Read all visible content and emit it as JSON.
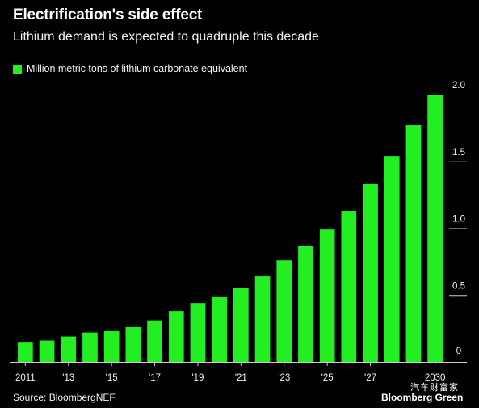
{
  "header": {
    "title": "Electrification's side effect",
    "subtitle": "Lithium demand is expected to quadruple this decade"
  },
  "footer": {
    "source": "Source: BloombergNEF",
    "brand": "Bloomberg Green",
    "watermark": "汽车财富家"
  },
  "colors": {
    "bar": "#22ee22",
    "background": "#000000",
    "axis": "#cccccc"
  },
  "chart_data": {
    "type": "bar",
    "title": "Electrification's side effect",
    "subtitle": "Lithium demand is expected to quadruple this decade",
    "legend": {
      "position": "top-left",
      "entries": [
        "Million metric tons of lithium carbonate equivalent"
      ]
    },
    "categories": [
      "2011",
      "2012",
      "2013",
      "2014",
      "2015",
      "2016",
      "2017",
      "2018",
      "2019",
      "2020",
      "2021",
      "2022",
      "2023",
      "2024",
      "2025",
      "2026",
      "2027",
      "2028",
      "2029",
      "2030"
    ],
    "x_tick_labels": [
      {
        "index": 0,
        "label": "2011"
      },
      {
        "index": 2,
        "label": "'13"
      },
      {
        "index": 4,
        "label": "'15"
      },
      {
        "index": 6,
        "label": "'17"
      },
      {
        "index": 8,
        "label": "'19"
      },
      {
        "index": 10,
        "label": "'21"
      },
      {
        "index": 12,
        "label": "'23"
      },
      {
        "index": 14,
        "label": "'25"
      },
      {
        "index": 16,
        "label": "'27"
      },
      {
        "index": 19,
        "label": "2030"
      }
    ],
    "series": [
      {
        "name": "Million metric tons of lithium carbonate equivalent",
        "values": [
          0.15,
          0.16,
          0.19,
          0.22,
          0.23,
          0.26,
          0.31,
          0.38,
          0.44,
          0.49,
          0.55,
          0.64,
          0.76,
          0.87,
          0.99,
          1.13,
          1.33,
          1.54,
          1.77,
          2.0
        ]
      }
    ],
    "y_ticks": [
      {
        "value": 0,
        "label": "0"
      },
      {
        "value": 0.5,
        "label": "0.5"
      },
      {
        "value": 1.0,
        "label": "1.0"
      },
      {
        "value": 1.5,
        "label": "1.5"
      },
      {
        "value": 2.0,
        "label": "2.0"
      }
    ],
    "ylim": [
      0,
      2.0
    ],
    "grid": false,
    "y_axis_side": "right"
  }
}
